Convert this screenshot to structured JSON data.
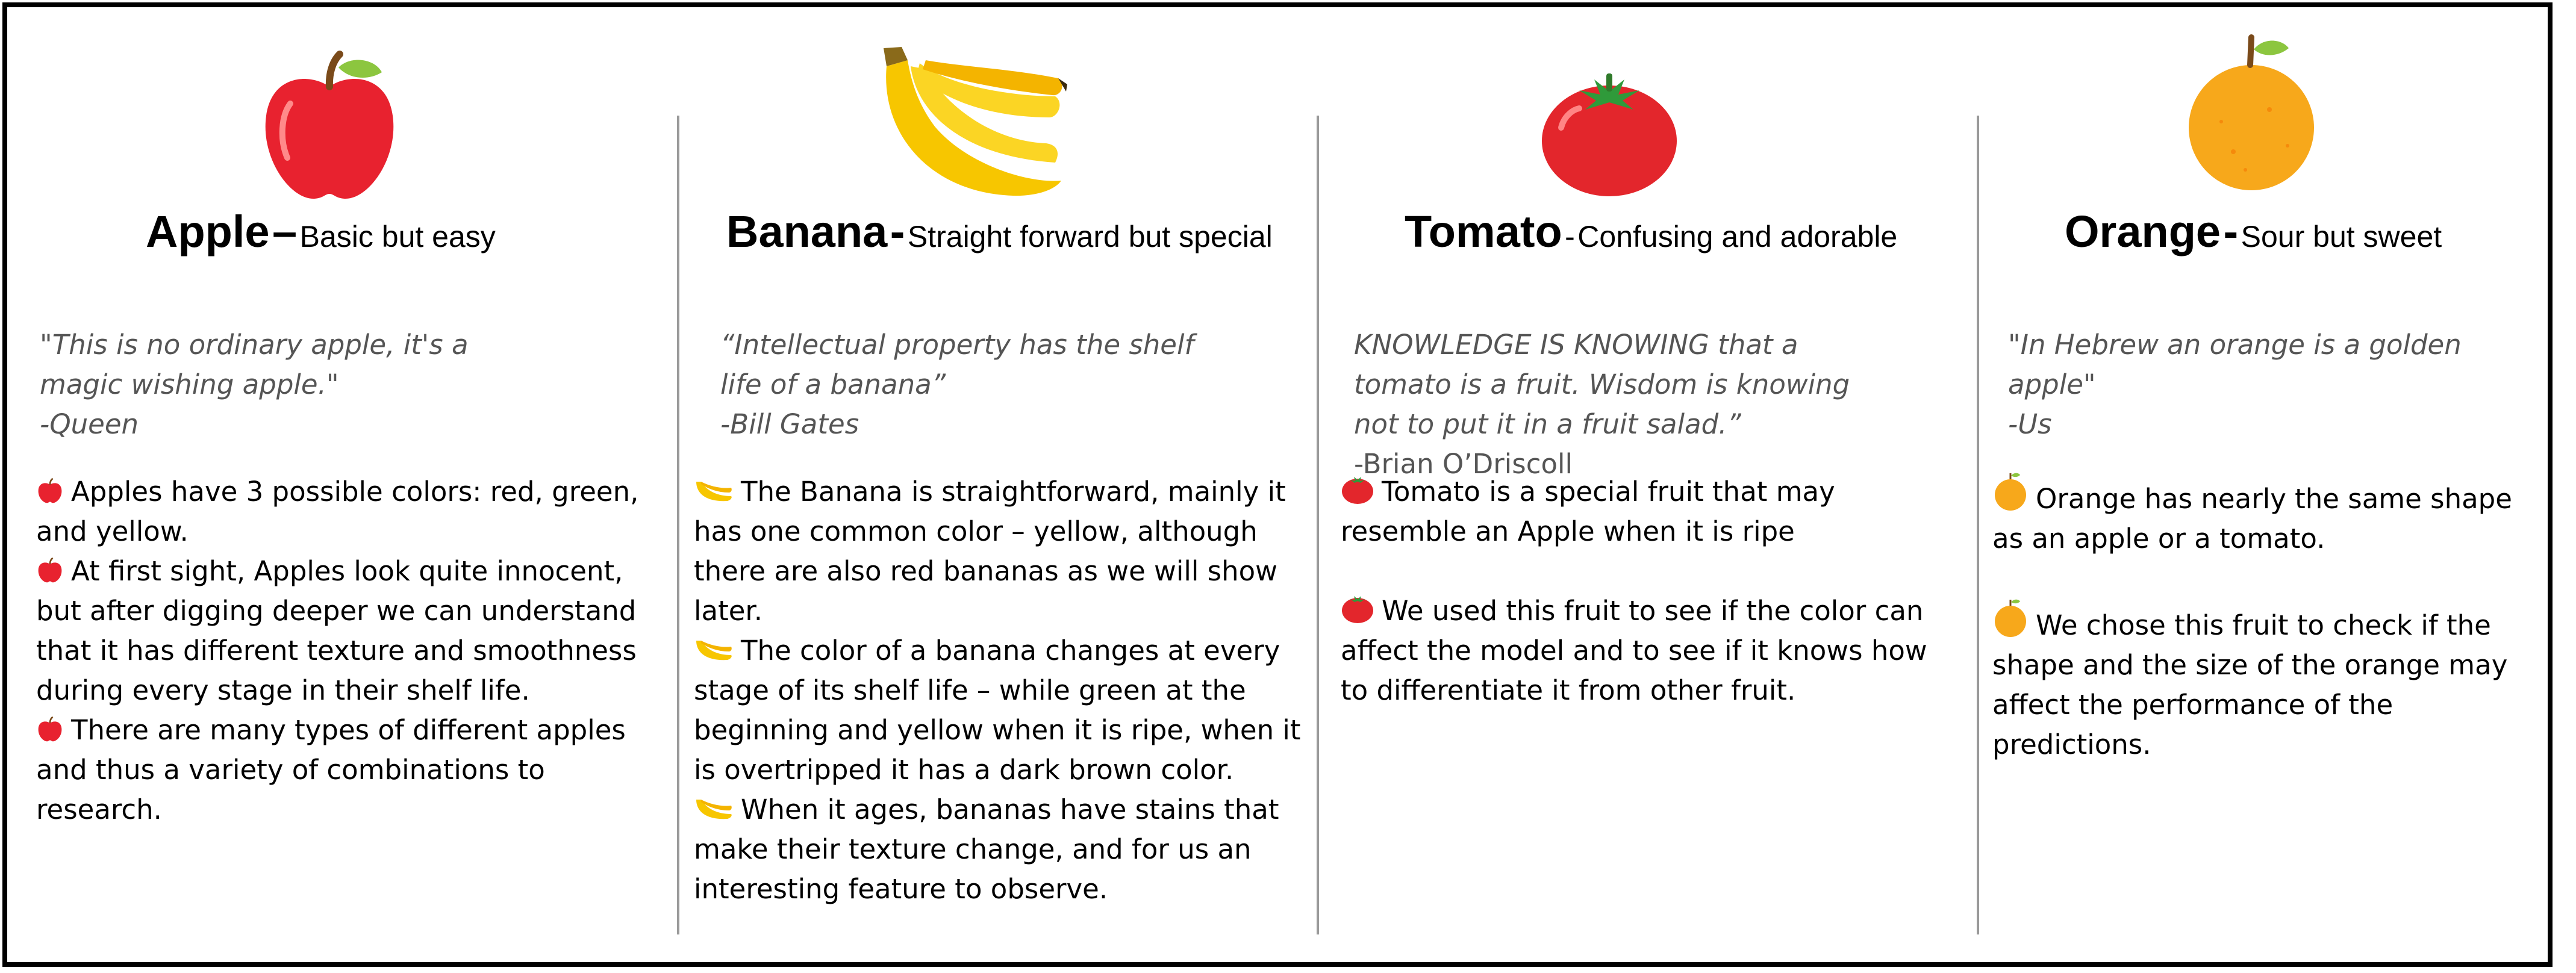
{
  "columns": [
    {
      "name": "Apple",
      "separator": "–",
      "tagline": "Basic but easy",
      "image_icon": "apple-icon",
      "quote": "\"This is no ordinary apple, it's a\nmagic wishing apple.\"",
      "author": "-Queen",
      "bullet_icon": "apple-icon",
      "bullets": [
        "Apples have 3 possible colors: red, green, and yellow.",
        "At first sight, Apples look quite innocent, but after digging deeper we can understand that it has different texture and smoothness during every stage in their shelf life.",
        "There are many types of different apples and thus a variety of combinations to research."
      ]
    },
    {
      "name": "Banana",
      "separator": "-",
      "tagline": "Straight forward but special",
      "image_icon": "banana-icon",
      "quote": "“Intellectual property has the shelf\nlife of a banana”",
      "author": "-Bill Gates",
      "bullet_icon": "banana-icon",
      "bullets": [
        "The Banana is straightforward, mainly it has one common color – yellow, although there are also red bananas as we will show later.",
        "The color of a banana changes at every stage of its shelf life – while green at the beginning and yellow when it is ripe, when it is overtripped it has a dark brown color.",
        "When it ages, bananas have stains that make their texture change, and for us an interesting feature to observe."
      ]
    },
    {
      "name": "Tomato",
      "separator": "-",
      "tagline": "Confusing and adorable",
      "image_icon": "tomato-icon",
      "quote": "KNOWLEDGE IS KNOWING that a\ntomato is a fruit. Wisdom is knowing\nnot to put it in a fruit salad.”",
      "author": "-Brian O’Driscoll",
      "bullet_icon": "tomato-icon",
      "bullets": [
        "Tomato is a special fruit that may resemble an Apple when it is ripe",
        "We used this fruit to see if the color can affect the model and to see if it knows how to differentiate it from other fruit."
      ]
    },
    {
      "name": "Orange",
      "separator": "-",
      "tagline": "Sour but sweet",
      "image_icon": "orange-icon",
      "quote": "\"In Hebrew an orange is a golden\napple\"",
      "author": "-Us",
      "bullet_icon": "orange-icon",
      "bullets": [
        "Orange has nearly the same shape as an apple or a tomato.",
        "We chose this fruit to check if the shape and the size of the orange may affect the performance of the predictions."
      ]
    }
  ],
  "colors": {
    "apple": "#e8222f",
    "banana": "#f7c600",
    "tomato": "#e3262c",
    "orange": "#f7a81b",
    "leaf": "#6ab04c",
    "quote_text": "#555555",
    "divider": "#9a9a9a"
  }
}
